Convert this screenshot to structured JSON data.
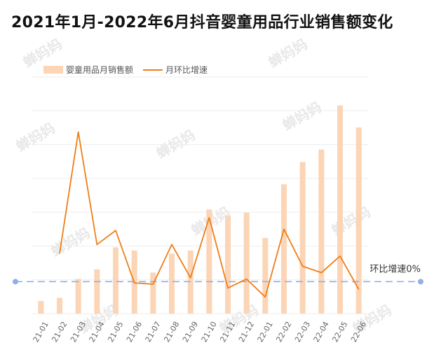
{
  "title": "2021年1月-2022年6月抖音婴童用品行业销售额变化",
  "watermark_text": "蝉妈妈",
  "legend": {
    "bar_label": "婴童用品月销售额",
    "line_label": "月环比增速"
  },
  "colors": {
    "bar": "#fbd5b6",
    "line": "#f07d17",
    "baseline": "#8fb0ea",
    "grid": "#eeeeee"
  },
  "chart_data": {
    "type": "bar",
    "categories": [
      "21-01",
      "21-02",
      "21-03",
      "21-04",
      "21-05",
      "21-06",
      "21-07",
      "21-08",
      "21-09",
      "21-10",
      "21-11",
      "21-12",
      "22-01",
      "22-02",
      "22-03",
      "22-04",
      "22-05",
      "22-06"
    ],
    "series": [
      {
        "name": "婴童用品月销售额",
        "type": "bar",
        "values": [
          4,
          5,
          11,
          14,
          21,
          20,
          13,
          19,
          20,
          33,
          31,
          32,
          24,
          41,
          48,
          52,
          66,
          59
        ]
      },
      {
        "name": "月环比增速",
        "type": "line",
        "values": [
          null,
          22,
          117,
          29,
          40,
          -1,
          -2,
          29,
          3,
          50,
          -5,
          2,
          -12,
          41,
          12,
          7,
          20,
          -6
        ]
      }
    ],
    "bar_ylim": [
      0,
      75
    ],
    "line_ylim": [
      -25,
      160
    ],
    "reference_line": {
      "value": 0,
      "label": "环比增速0%"
    },
    "grid": true,
    "legend_position": "top-left"
  }
}
